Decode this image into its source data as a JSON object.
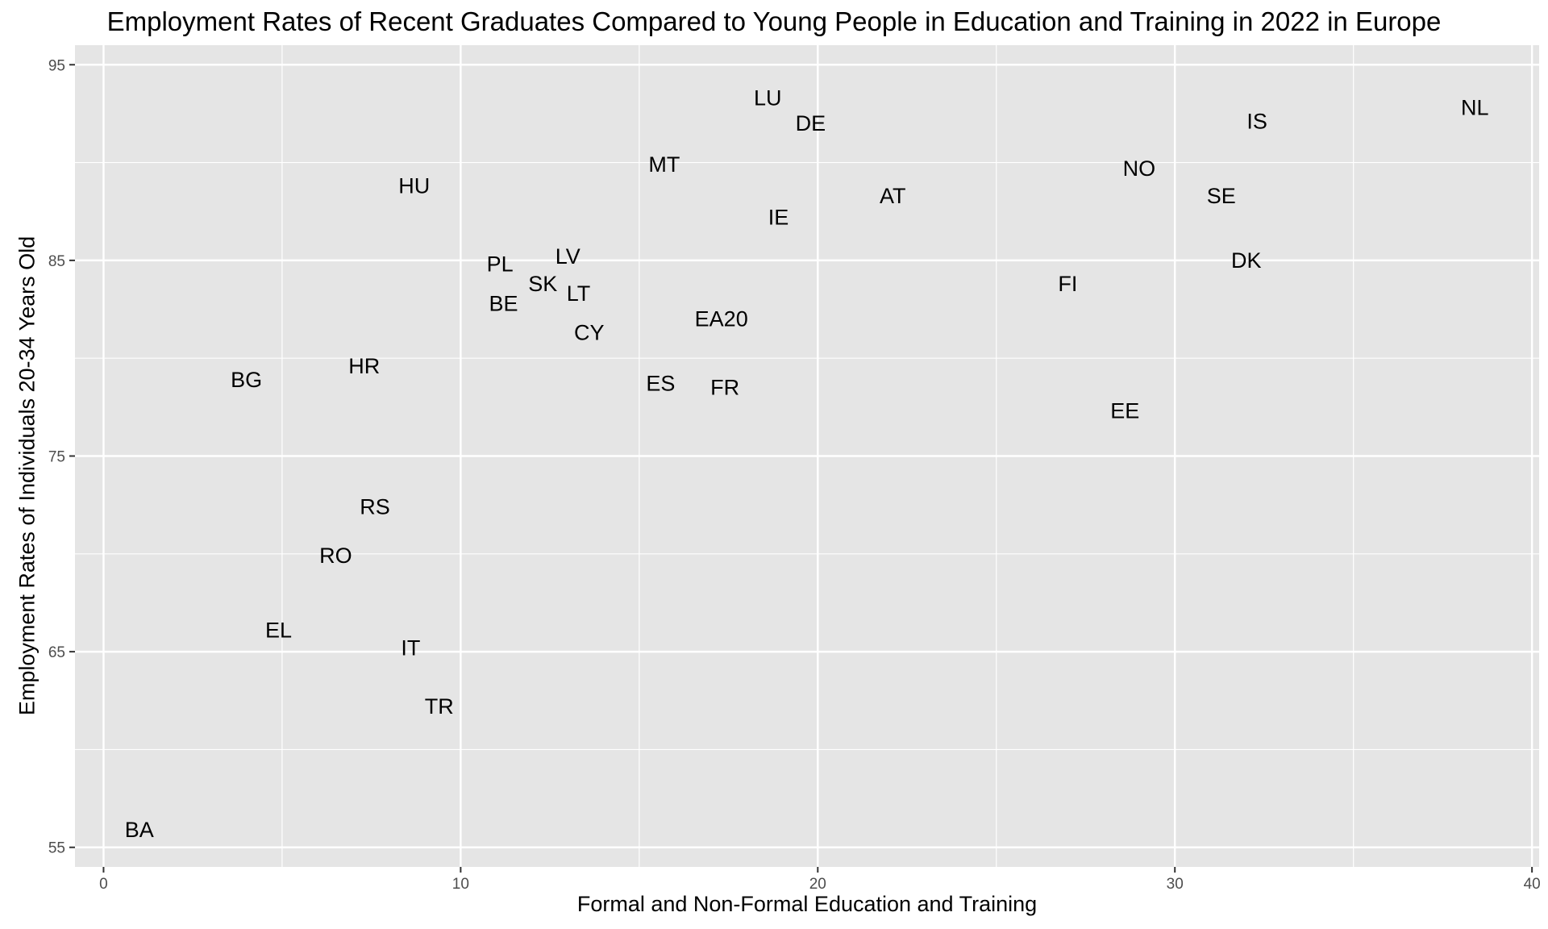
{
  "chart_data": {
    "type": "scatter",
    "title": "Employment Rates of Recent Graduates Compared to Young People in Education and Training in 2022 in Europe",
    "xlabel": "Formal and Non-Formal Education and Training",
    "ylabel": "Employment Rates of Individuals 20-34 Years Old",
    "xlim": [
      -0.8,
      40.2
    ],
    "ylim": [
      54,
      96
    ],
    "x_ticks": [
      0,
      10,
      20,
      30,
      40
    ],
    "y_ticks": [
      55,
      65,
      75,
      85,
      95
    ],
    "grid": true,
    "background": "#e5e5e5",
    "grid_color": "#ffffff",
    "points": [
      {
        "label": "NL",
        "x": 38.4,
        "y": 92.8
      },
      {
        "label": "IS",
        "x": 32.3,
        "y": 92.1
      },
      {
        "label": "LU",
        "x": 18.6,
        "y": 93.3
      },
      {
        "label": "DE",
        "x": 19.8,
        "y": 92.0
      },
      {
        "label": "NO",
        "x": 29.0,
        "y": 89.7
      },
      {
        "label": "MT",
        "x": 15.7,
        "y": 89.9
      },
      {
        "label": "HU",
        "x": 8.7,
        "y": 88.8
      },
      {
        "label": "SE",
        "x": 31.3,
        "y": 88.3
      },
      {
        "label": "AT",
        "x": 22.1,
        "y": 88.3
      },
      {
        "label": "IE",
        "x": 18.9,
        "y": 87.2
      },
      {
        "label": "DK",
        "x": 32.0,
        "y": 85.0
      },
      {
        "label": "LV",
        "x": 13.0,
        "y": 85.2
      },
      {
        "label": "PL",
        "x": 11.1,
        "y": 84.8
      },
      {
        "label": "SK",
        "x": 12.3,
        "y": 83.8
      },
      {
        "label": "FI",
        "x": 27.0,
        "y": 83.8
      },
      {
        "label": "LT",
        "x": 13.3,
        "y": 83.3
      },
      {
        "label": "BE",
        "x": 11.2,
        "y": 82.8
      },
      {
        "label": "EA20",
        "x": 17.3,
        "y": 82.0
      },
      {
        "label": "CY",
        "x": 13.6,
        "y": 81.3
      },
      {
        "label": "HR",
        "x": 7.3,
        "y": 79.6
      },
      {
        "label": "BG",
        "x": 4.0,
        "y": 78.9
      },
      {
        "label": "ES",
        "x": 15.6,
        "y": 78.7
      },
      {
        "label": "FR",
        "x": 17.4,
        "y": 78.5
      },
      {
        "label": "EE",
        "x": 28.6,
        "y": 77.3
      },
      {
        "label": "RS",
        "x": 7.6,
        "y": 72.4
      },
      {
        "label": "RO",
        "x": 6.5,
        "y": 69.9
      },
      {
        "label": "EL",
        "x": 4.9,
        "y": 66.1
      },
      {
        "label": "IT",
        "x": 8.6,
        "y": 65.2
      },
      {
        "label": "TR",
        "x": 9.4,
        "y": 62.2
      },
      {
        "label": "BA",
        "x": 1.0,
        "y": 55.9
      }
    ]
  }
}
